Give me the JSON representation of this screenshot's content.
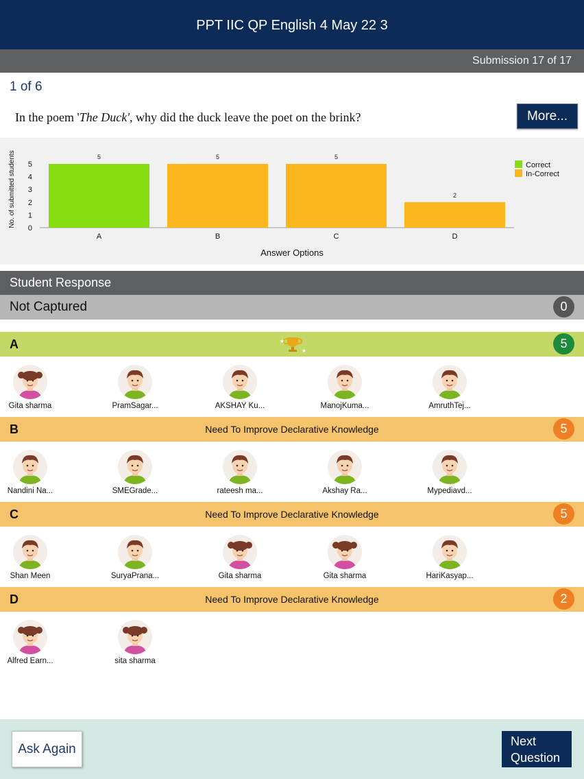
{
  "header": {
    "title": "PPT IIC QP English 4 May 22 3"
  },
  "subbar": {
    "submission": "Submission 17 of 17"
  },
  "question": {
    "counter": "1 of 6",
    "text_before": "In the poem '",
    "text_italic": "The Duck',",
    "text_after": " why did the duck leave the poet on the brink?",
    "more_label": "More..."
  },
  "chart_data": {
    "type": "bar",
    "categories": [
      "A",
      "B",
      "C",
      "D"
    ],
    "values": [
      5,
      5,
      5,
      2
    ],
    "correct": [
      true,
      false,
      false,
      false
    ],
    "xlabel": "Answer Options",
    "ylabel": "No. of submitted students",
    "ylim": [
      0,
      5
    ],
    "yticks": [
      0,
      1,
      2,
      3,
      4,
      5
    ],
    "legend": [
      {
        "name": "Correct",
        "color": "#86dd0f"
      },
      {
        "name": "In-Correct",
        "color": "#fcb61d"
      }
    ],
    "legend_position": "top-right",
    "grid": false
  },
  "response": {
    "title": "Student Response",
    "not_captured_label": "Not Captured",
    "not_captured_count": "0",
    "groups": [
      {
        "letter": "A",
        "feedback": "",
        "count": "5",
        "correct": true,
        "students": [
          {
            "name": "Gita sharma",
            "gender": "girl"
          },
          {
            "name": "PramSagar...",
            "gender": "boy"
          },
          {
            "name": "AKSHAY Ku...",
            "gender": "boy"
          },
          {
            "name": "ManojKuma...",
            "gender": "boy"
          },
          {
            "name": "AmruthTej...",
            "gender": "boy"
          }
        ]
      },
      {
        "letter": "B",
        "feedback": "Need To Improve Declarative Knowledge",
        "count": "5",
        "correct": false,
        "students": [
          {
            "name": "Nandini Na...",
            "gender": "boy"
          },
          {
            "name": "SMEGrade...",
            "gender": "boy"
          },
          {
            "name": "rateesh ma...",
            "gender": "boy"
          },
          {
            "name": "Akshay Ra...",
            "gender": "boy"
          },
          {
            "name": "Mypediavd...",
            "gender": "boy"
          }
        ]
      },
      {
        "letter": "C",
        "feedback": "Need To Improve Declarative Knowledge",
        "count": "5",
        "correct": false,
        "students": [
          {
            "name": "Shan Meen",
            "gender": "boy"
          },
          {
            "name": "SuryaPrana...",
            "gender": "boy"
          },
          {
            "name": "Gita sharma",
            "gender": "girl"
          },
          {
            "name": "Gita sharma",
            "gender": "girl"
          },
          {
            "name": "HariKasyap...",
            "gender": "boy"
          }
        ]
      },
      {
        "letter": "D",
        "feedback": "Need To Improve Declarative Knowledge",
        "count": "2",
        "correct": false,
        "students": [
          {
            "name": "Alfred Earn...",
            "gender": "girl"
          },
          {
            "name": "sita sharma",
            "gender": "girl"
          }
        ]
      }
    ]
  },
  "colors": {
    "header": "#0c2b57",
    "correct_band": "#c4d867",
    "incorrect_band": "#f4c36c",
    "badge_correct": "#1c8b3c",
    "badge_incorrect": "#ef7f23",
    "badge_neutral": "#575757"
  },
  "footer": {
    "ask_again": "Ask Again",
    "next_line1": "Next",
    "next_line2": "Question"
  }
}
